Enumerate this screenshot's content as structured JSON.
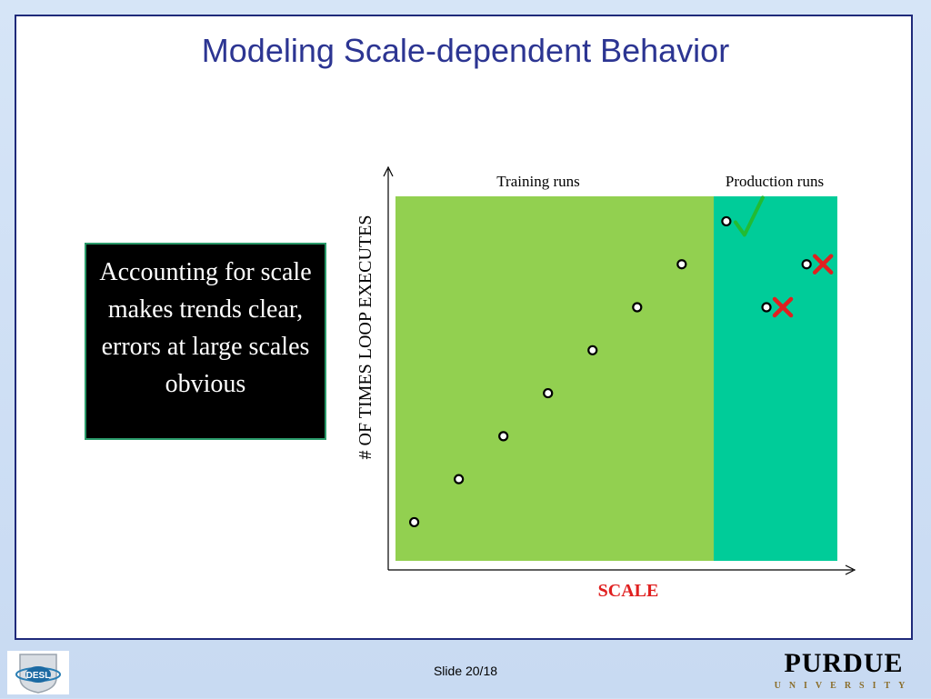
{
  "slide": {
    "title": "Modeling Scale-dependent Behavior",
    "callout": "Accounting for scale makes trends clear, errors at large scales obvious",
    "footer": "Slide 20/18",
    "logo_right_main": "PURDUE",
    "logo_right_sub": "UNIVERSITY",
    "logo_left_text": "DESL"
  },
  "chart_data": {
    "type": "scatter",
    "xlabel": "SCALE",
    "ylabel": "# OF TIMES LOOP EXECUTES",
    "regions": [
      {
        "label": "Training runs",
        "color": "#92d050"
      },
      {
        "label": "Production runs",
        "color": "#00cc99"
      }
    ],
    "training_points": [
      {
        "x": 1,
        "y": 1
      },
      {
        "x": 2,
        "y": 2
      },
      {
        "x": 3,
        "y": 3
      },
      {
        "x": 4,
        "y": 4
      },
      {
        "x": 5,
        "y": 5
      },
      {
        "x": 6,
        "y": 6
      },
      {
        "x": 7,
        "y": 7
      }
    ],
    "production_points": [
      {
        "x": 8,
        "y": 8,
        "status": "correct"
      },
      {
        "x": 9.8,
        "y": 7,
        "status": "error"
      },
      {
        "x": 8.9,
        "y": 6,
        "status": "error"
      }
    ],
    "colors": {
      "check": "#22bb33",
      "error": "#e02020",
      "xlabel": "#e02020"
    }
  }
}
